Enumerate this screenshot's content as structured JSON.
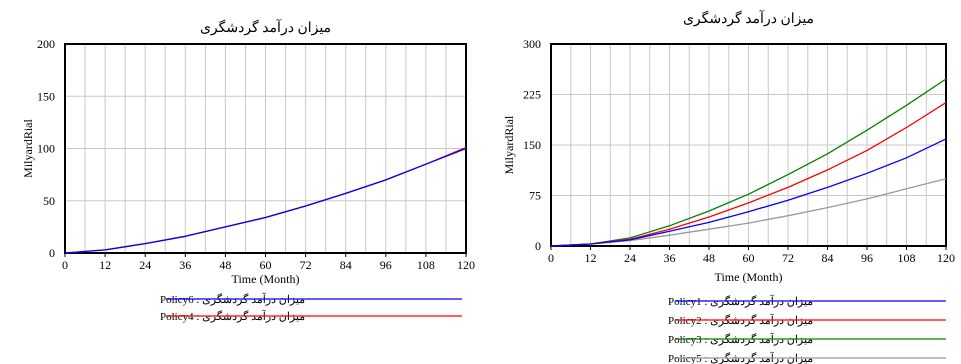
{
  "chart_data": [
    {
      "type": "line",
      "title": "میزان درآمد گردشگری",
      "xlabel": "Time (Month)",
      "ylabel": "MilyardRial",
      "xlim": [
        0,
        120
      ],
      "ylim": [
        0,
        200
      ],
      "xticks": [
        0,
        12,
        24,
        36,
        48,
        60,
        72,
        84,
        96,
        108,
        120
      ],
      "yticks": [
        0,
        50,
        100,
        150,
        200
      ],
      "grid": true,
      "legend_position": "bottom-left",
      "x": [
        0,
        12,
        24,
        36,
        48,
        60,
        72,
        84,
        96,
        108,
        120
      ],
      "series": [
        {
          "name": "میزان درآمد گردشگری : Policy6",
          "color": "#0000ff",
          "values": [
            0,
            3,
            9,
            16,
            25,
            34,
            45,
            57,
            70,
            85,
            100
          ]
        },
        {
          "name": "میزان درآمد گردشگری : Policy4",
          "color": "#ff0000",
          "values": [
            0,
            3,
            9,
            16,
            25,
            34,
            45,
            57,
            70,
            85,
            101
          ]
        }
      ]
    },
    {
      "type": "line",
      "title": "میزان درآمد گردشگری",
      "xlabel": "Time (Month)",
      "ylabel": "MilyardRial",
      "xlim": [
        0,
        120
      ],
      "ylim": [
        0,
        300
      ],
      "xticks": [
        0,
        12,
        24,
        36,
        48,
        60,
        72,
        84,
        96,
        108,
        120
      ],
      "yticks": [
        0,
        75,
        150,
        225,
        300
      ],
      "grid": true,
      "legend_position": "bottom-left",
      "x": [
        0,
        12,
        24,
        36,
        48,
        60,
        72,
        84,
        96,
        108,
        120
      ],
      "series": [
        {
          "name": "میزان درآمد گردشگری : Policy1",
          "color": "#0000ff",
          "values": [
            0,
            3,
            9,
            22,
            35,
            51,
            68,
            87,
            108,
            131,
            159
          ]
        },
        {
          "name": "میزان درآمد گردشگری : Policy2",
          "color": "#ff0000",
          "values": [
            0,
            3,
            10,
            25,
            43,
            64,
            87,
            113,
            142,
            176,
            213
          ]
        },
        {
          "name": "میزان درآمد گردشگری : Policy3",
          "color": "#008000",
          "values": [
            0,
            3,
            12,
            30,
            52,
            77,
            106,
            137,
            172,
            209,
            248
          ]
        },
        {
          "name": "میزان درآمد گردشگری : Policy5",
          "color": "#999999",
          "values": [
            0,
            3,
            8,
            16,
            25,
            34,
            45,
            57,
            70,
            85,
            100
          ]
        }
      ]
    }
  ]
}
